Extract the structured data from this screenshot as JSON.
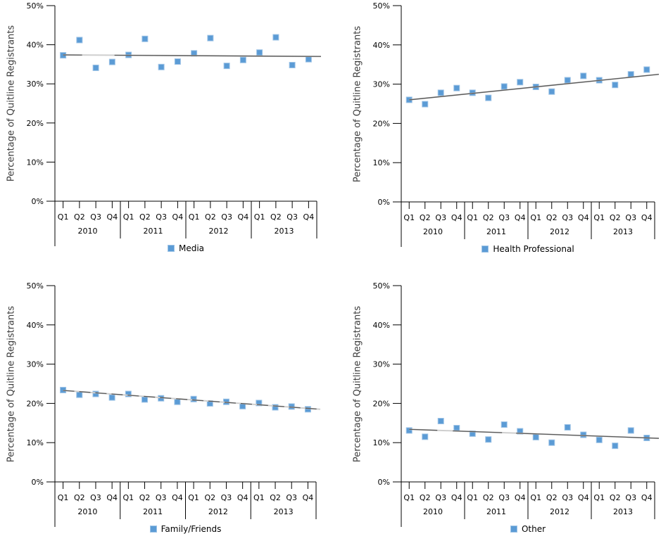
{
  "colors": {
    "marker_fill": "#5b9bd5",
    "marker_border": "#9dc3e6",
    "trend_dark": "#595959",
    "trend_light": "#cfcfcf",
    "axis": "#000000",
    "y_title_text": "#3d3d3d",
    "background": "#ffffff"
  },
  "chart_data": [
    {
      "type": "scatter",
      "title": "",
      "ylabel": "Percentage of Quitline Registrants",
      "xlabel": "",
      "ylim": [
        0,
        50
      ],
      "yticks": [
        "0%",
        "10%",
        "20%",
        "30%",
        "40%",
        "50%"
      ],
      "ytick_values": [
        0,
        10,
        20,
        30,
        40,
        50
      ],
      "grid": false,
      "legend": "Media",
      "legend_position": "bottom",
      "years": [
        "2010",
        "2011",
        "2012",
        "2013"
      ],
      "quarters": [
        "Q1",
        "Q2",
        "Q3",
        "Q4"
      ],
      "values": [
        37.3,
        41.2,
        34.1,
        35.6,
        37.4,
        41.5,
        34.3,
        35.7,
        37.8,
        41.7,
        34.6,
        36.1,
        38.0,
        41.9,
        34.8,
        36.3
      ],
      "trendline": {
        "start": 37.4,
        "end": 37.0
      }
    },
    {
      "type": "scatter",
      "title": "",
      "ylabel": "Percentage of Quitline Registrants",
      "xlabel": "",
      "ylim": [
        0,
        50
      ],
      "yticks": [
        "0%",
        "10%",
        "20%",
        "30%",
        "40%",
        "50%"
      ],
      "ytick_values": [
        0,
        10,
        20,
        30,
        40,
        50
      ],
      "grid": false,
      "legend": "Health Professional",
      "legend_position": "bottom",
      "years": [
        "2010",
        "2011",
        "2012",
        "2013"
      ],
      "quarters": [
        "Q1",
        "Q2",
        "Q3",
        "Q4"
      ],
      "values": [
        26.0,
        24.9,
        27.8,
        29.0,
        27.8,
        26.5,
        29.4,
        30.5,
        29.3,
        28.1,
        31.0,
        32.1,
        31.0,
        29.8,
        32.5,
        33.7
      ],
      "trendline": {
        "start": 26.0,
        "end": 32.5
      }
    },
    {
      "type": "scatter",
      "title": "",
      "ylabel": "Percentage of Quitline Registrants",
      "xlabel": "",
      "ylim": [
        0,
        50
      ],
      "yticks": [
        "0%",
        "10%",
        "20%",
        "30%",
        "40%",
        "50%"
      ],
      "ytick_values": [
        0,
        10,
        20,
        30,
        40,
        50
      ],
      "grid": false,
      "legend": "Family/Friends",
      "legend_position": "bottom",
      "years": [
        "2010",
        "2011",
        "2012",
        "2013"
      ],
      "quarters": [
        "Q1",
        "Q2",
        "Q3",
        "Q4"
      ],
      "values": [
        23.4,
        22.2,
        22.4,
        21.5,
        22.4,
        21.0,
        21.3,
        20.4,
        21.1,
        20.0,
        20.4,
        19.3,
        20.1,
        19.0,
        19.2,
        18.5
      ],
      "trendline": {
        "start": 23.3,
        "end": 18.5
      }
    },
    {
      "type": "scatter",
      "title": "",
      "ylabel": "Percentage of Quitline Registrants",
      "xlabel": "",
      "ylim": [
        0,
        50
      ],
      "yticks": [
        "0%",
        "10%",
        "20%",
        "30%",
        "40%",
        "50%"
      ],
      "ytick_values": [
        0,
        10,
        20,
        30,
        40,
        50
      ],
      "grid": false,
      "legend": "Other",
      "legend_position": "bottom",
      "years": [
        "2010",
        "2011",
        "2012",
        "2013"
      ],
      "quarters": [
        "Q1",
        "Q2",
        "Q3",
        "Q4"
      ],
      "values": [
        13.1,
        11.5,
        15.5,
        13.7,
        12.3,
        10.8,
        14.6,
        12.9,
        11.4,
        10.0,
        13.9,
        12.0,
        10.7,
        9.2,
        13.1,
        11.2
      ],
      "trendline": {
        "start": 13.4,
        "end": 11.1
      }
    }
  ]
}
